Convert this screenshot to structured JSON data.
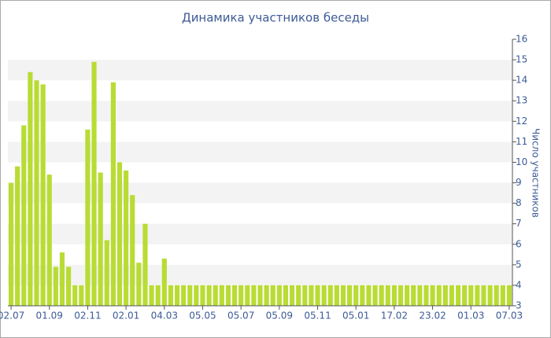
{
  "chart_data": {
    "type": "bar",
    "title": "Динамика участников беседы",
    "y_label": "Число участников",
    "categories": [
      "02.07",
      null,
      null,
      null,
      null,
      null,
      "01.09",
      null,
      null,
      null,
      null,
      null,
      "02.11",
      null,
      null,
      null,
      null,
      null,
      "02.01",
      null,
      null,
      null,
      null,
      null,
      "04.03",
      null,
      null,
      null,
      null,
      null,
      "05.05",
      null,
      null,
      null,
      null,
      null,
      "05.07",
      null,
      null,
      null,
      null,
      null,
      "05.09",
      null,
      null,
      null,
      null,
      null,
      "05.11",
      null,
      null,
      null,
      null,
      null,
      "05.01",
      null,
      null,
      null,
      null,
      null,
      "17.02",
      null,
      null,
      null,
      null,
      null,
      "23.02",
      null,
      null,
      null,
      null,
      null,
      "01.03",
      null,
      null,
      null,
      null,
      null,
      "07.03"
    ],
    "values": [
      9,
      9.8,
      11.8,
      14.4,
      14,
      13.8,
      9.4,
      4.9,
      5.6,
      4.9,
      4,
      4,
      11.6,
      14.9,
      9.5,
      6.2,
      13.9,
      10,
      9.6,
      8.4,
      5.1,
      7,
      4,
      4,
      5.3,
      4,
      4,
      4,
      4,
      4,
      4,
      4,
      4,
      4,
      4,
      4,
      4,
      4,
      4,
      4,
      4,
      4,
      4,
      4,
      4,
      4,
      4,
      4,
      4,
      4,
      4,
      4,
      4,
      4,
      4,
      4,
      4,
      4,
      4,
      4,
      4,
      4,
      4,
      4,
      4,
      4,
      4,
      4,
      4,
      4,
      4,
      4,
      4,
      4,
      4,
      4,
      4,
      4,
      4
    ],
    "color": "#b8dc34",
    "ylim": [
      3,
      16
    ],
    "yticks": [
      3,
      4,
      5,
      6,
      7,
      8,
      9,
      10,
      11,
      12,
      13,
      14,
      15,
      16
    ],
    "grid": true
  }
}
